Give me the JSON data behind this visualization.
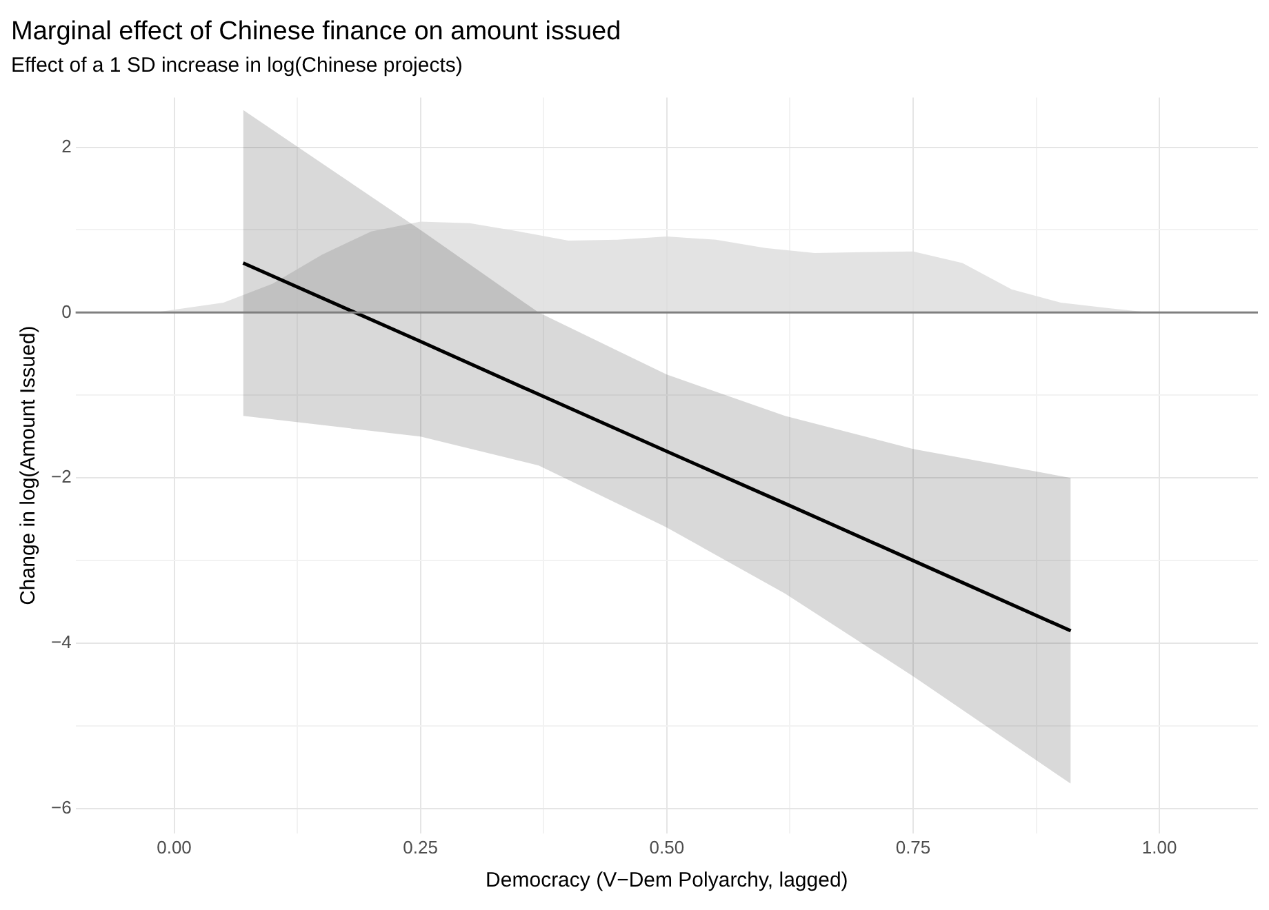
{
  "chart_data": {
    "type": "line",
    "title": "Marginal effect of Chinese finance on amount issued",
    "subtitle": "Effect of a 1 SD increase in log(Chinese projects)",
    "xlabel": "Democracy (V−Dem Polyarchy, lagged)",
    "ylabel": "Change in log(Amount Issued)",
    "xlim": [
      -0.1,
      1.1
    ],
    "ylim": [
      -6.3,
      2.6
    ],
    "xticks": [
      {
        "value": 0,
        "label": "0.00"
      },
      {
        "value": 0.125,
        "label": null
      },
      {
        "value": 0.25,
        "label": "0.25"
      },
      {
        "value": 0.375,
        "label": null
      },
      {
        "value": 0.5,
        "label": "0.50"
      },
      {
        "value": 0.625,
        "label": null
      },
      {
        "value": 0.75,
        "label": "0.75"
      },
      {
        "value": 0.875,
        "label": null
      },
      {
        "value": 1,
        "label": "1.00"
      }
    ],
    "yticks": [
      {
        "value": -6,
        "label": "−6"
      },
      {
        "value": -5,
        "label": null
      },
      {
        "value": -4,
        "label": "−4"
      },
      {
        "value": -3,
        "label": null
      },
      {
        "value": -2,
        "label": "−2"
      },
      {
        "value": -1,
        "label": null
      },
      0,
      {
        "value": 1,
        "label": null
      },
      2
    ],
    "grid": true,
    "legend": false,
    "marker": "none",
    "ref_lines": [
      {
        "axis": "y",
        "value": 0,
        "color": "#7f7f7f"
      }
    ],
    "series": [
      {
        "type": "area",
        "color": "#dedede",
        "x": [
          -0.02,
          0.05,
          0.1,
          0.15,
          0.2,
          0.25,
          0.3,
          0.35,
          0.4,
          0.45,
          0.5,
          0.55,
          0.6,
          0.65,
          0.7,
          0.75,
          0.8,
          0.85,
          0.9,
          0.95,
          0.99
        ],
        "values": [
          0,
          0.12,
          0.35,
          0.7,
          0.98,
          1.1,
          1.08,
          0.98,
          0.87,
          0.88,
          0.92,
          0.88,
          0.78,
          0.72,
          0.73,
          0.74,
          0.6,
          0.28,
          0.12,
          0.05,
          0
        ]
      },
      {
        "type": "line",
        "color": "#000000",
        "x": [
          0.07,
          0.25,
          0.37,
          0.5,
          0.62,
          0.75,
          0.91
        ],
        "values": [
          0.6,
          -0.35,
          -0.99,
          -1.68,
          -2.31,
          -3.0,
          -3.85
        ],
        "lower": [
          -1.25,
          -1.5,
          -1.85,
          -2.6,
          -3.4,
          -4.4,
          -5.7
        ],
        "upper": [
          2.45,
          1.0,
          0.0,
          -0.75,
          -1.25,
          -1.65,
          -2.0
        ]
      }
    ]
  }
}
